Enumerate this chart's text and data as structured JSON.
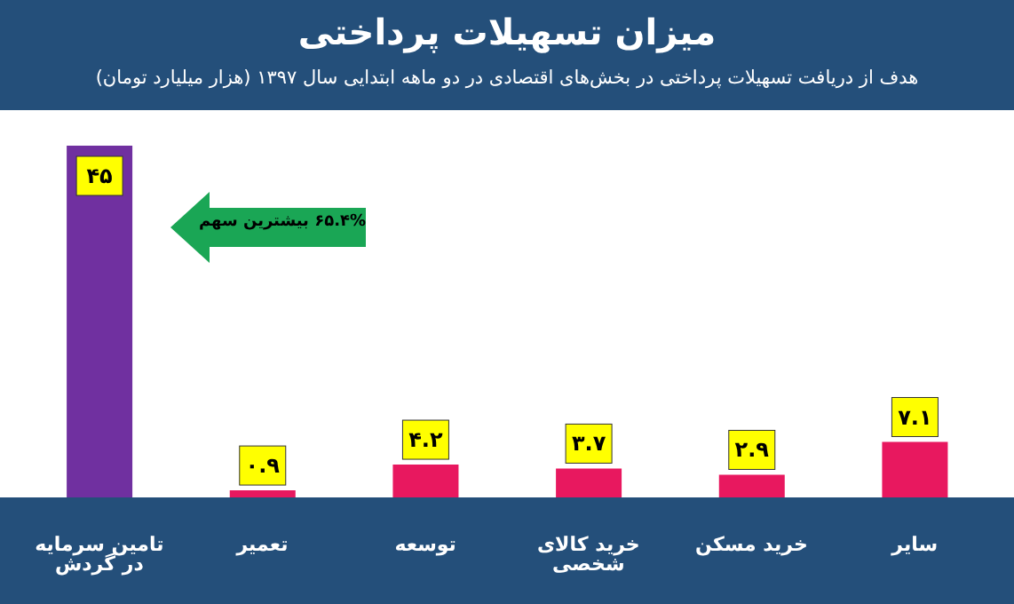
{
  "chart_data": {
    "type": "bar",
    "title": "میزان تسهیلات پرداختی",
    "subtitle": "هدف از دریافت تسهیلات پرداختی در بخش‌های اقتصادی در دو ماهه ابتدایی سال ۱۳۹۷ (هزار میلیارد تومان)",
    "categories": [
      "تامین سرمایه در گردش",
      "تعمیر",
      "توسعه",
      "خرید کالای شخصی",
      "خرید مسکن",
      "سایر"
    ],
    "values": [
      45,
      0.9,
      4.2,
      3.7,
      2.9,
      7.1
    ],
    "colors": [
      "#7030a0",
      "#e8185f",
      "#e8185f",
      "#e8185f",
      "#e8185f",
      "#e8185f"
    ],
    "value_labels": [
      "۴۵",
      "۰.۹",
      "۴.۲",
      "۳.۷",
      "۲.۹",
      "۷.۱"
    ],
    "annotations": [
      "۶۵.۴% بیشترین سهم"
    ]
  }
}
